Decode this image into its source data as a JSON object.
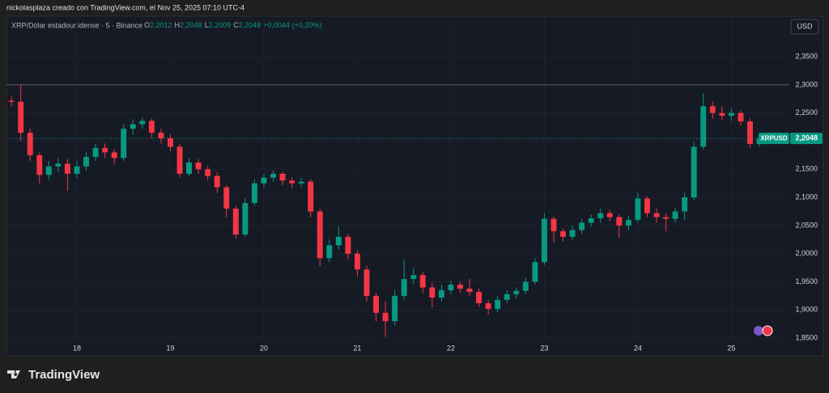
{
  "header": "nickolasplaza creado con TradingView.com, el Nov 25, 2025 07:10 UTC-4",
  "brand": "TradingView",
  "currency": "USD",
  "chart_data": {
    "type": "candlestick",
    "title": "XRP/Dólar estadounidense · 5 · Binance",
    "ohlc_legend": [
      {
        "key": "O",
        "value": "2,2012"
      },
      {
        "key": "H",
        "value": "2,2048"
      },
      {
        "key": "L",
        "value": "2,2009"
      },
      {
        "key": "C",
        "value": "2,2048"
      }
    ],
    "change": "+0,0044 (+0,20%)",
    "symbol": "XRPUSD",
    "last_price": {
      "value": 2.2048,
      "label": "2,2048"
    },
    "reference_line": 2.3,
    "up_color": "#089981",
    "down_color": "#f23645",
    "grid": true,
    "xlim": [
      17.247,
      25.62
    ],
    "ylim": [
      1.843,
      2.422
    ],
    "xticks": [
      18,
      19,
      20,
      21,
      22,
      23,
      24,
      25
    ],
    "yticks": [
      {
        "value": 1.85,
        "label": "1,8500"
      },
      {
        "value": 1.9,
        "label": "1,9000"
      },
      {
        "value": 1.95,
        "label": "1,9500"
      },
      {
        "value": 2.0,
        "label": "2,0000"
      },
      {
        "value": 2.05,
        "label": "2,0500"
      },
      {
        "value": 2.1,
        "label": "2,1000"
      },
      {
        "value": 2.15,
        "label": "2,1500"
      },
      {
        "value": 2.2,
        "label": "2,2000"
      },
      {
        "value": 2.25,
        "label": "2,2500"
      },
      {
        "value": 2.3,
        "label": "2,3000"
      },
      {
        "value": 2.35,
        "label": "2,3500"
      }
    ],
    "x": [
      17.3,
      17.4,
      17.5,
      17.6,
      17.7,
      17.8,
      17.9,
      18.0,
      18.1,
      18.2,
      18.3,
      18.4,
      18.5,
      18.6,
      18.7,
      18.8,
      18.9,
      19.0,
      19.1,
      19.2,
      19.3,
      19.4,
      19.5,
      19.6,
      19.7,
      19.8,
      19.9,
      20.0,
      20.1,
      20.2,
      20.3,
      20.4,
      20.5,
      20.6,
      20.7,
      20.8,
      20.9,
      21.0,
      21.1,
      21.2,
      21.3,
      21.4,
      21.5,
      21.6,
      21.7,
      21.8,
      21.9,
      22.0,
      22.1,
      22.2,
      22.3,
      22.4,
      22.5,
      22.6,
      22.7,
      22.8,
      22.9,
      23.0,
      23.1,
      23.2,
      23.3,
      23.4,
      23.5,
      23.6,
      23.7,
      23.8,
      23.9,
      24.0,
      24.1,
      24.2,
      24.3,
      24.4,
      24.5,
      24.6,
      24.7,
      24.8,
      24.9,
      25.0,
      25.1,
      25.2,
      25.3
    ],
    "open": [
      2.272,
      2.27,
      2.215,
      2.175,
      2.14,
      2.155,
      2.16,
      2.142,
      2.155,
      2.172,
      2.188,
      2.18,
      2.17,
      2.222,
      2.23,
      2.236,
      2.215,
      2.205,
      2.19,
      2.142,
      2.162,
      2.15,
      2.138,
      2.118,
      2.08,
      2.034,
      2.09,
      2.125,
      2.135,
      2.142,
      2.13,
      2.125,
      2.128,
      2.075,
      1.992,
      2.015,
      2.03,
      2.0,
      1.972,
      1.925,
      1.895,
      1.88,
      1.925,
      1.955,
      1.962,
      1.94,
      1.922,
      1.935,
      1.945,
      1.938,
      1.932,
      1.912,
      1.902,
      1.918,
      1.928,
      1.934,
      1.95,
      1.985,
      2.062,
      2.04,
      2.03,
      2.042,
      2.055,
      2.063,
      2.072,
      2.065,
      2.05,
      2.06,
      2.098,
      2.072,
      2.065,
      2.062,
      2.075,
      2.1,
      2.19,
      2.262,
      2.25,
      2.245,
      2.25,
      2.235,
      2.195
    ],
    "high": [
      2.28,
      2.3,
      2.222,
      2.18,
      2.165,
      2.17,
      2.168,
      2.165,
      2.18,
      2.195,
      2.196,
      2.186,
      2.23,
      2.238,
      2.242,
      2.24,
      2.222,
      2.212,
      2.195,
      2.17,
      2.168,
      2.156,
      2.145,
      2.122,
      2.085,
      2.098,
      2.132,
      2.142,
      2.148,
      2.146,
      2.136,
      2.135,
      2.132,
      2.08,
      2.025,
      2.048,
      2.035,
      2.006,
      1.978,
      1.93,
      1.915,
      1.935,
      1.99,
      1.975,
      1.968,
      1.948,
      1.945,
      1.952,
      1.95,
      1.955,
      1.938,
      1.918,
      1.925,
      1.935,
      1.94,
      1.958,
      1.992,
      2.072,
      2.066,
      2.045,
      2.05,
      2.062,
      2.07,
      2.08,
      2.078,
      2.07,
      2.068,
      2.108,
      2.102,
      2.08,
      2.072,
      2.082,
      2.108,
      2.198,
      2.285,
      2.27,
      2.262,
      2.258,
      2.255,
      2.24,
      2.2048
    ],
    "low": [
      2.262,
      2.2,
      2.165,
      2.125,
      2.132,
      2.145,
      2.112,
      2.135,
      2.148,
      2.165,
      2.17,
      2.158,
      2.165,
      2.212,
      2.222,
      2.205,
      2.196,
      2.182,
      2.135,
      2.138,
      2.142,
      2.13,
      2.108,
      2.065,
      2.027,
      2.03,
      2.085,
      2.118,
      2.128,
      2.122,
      2.116,
      2.118,
      2.065,
      1.978,
      1.985,
      2.008,
      1.99,
      1.96,
      1.915,
      1.88,
      1.852,
      1.872,
      1.918,
      1.945,
      1.93,
      1.905,
      1.915,
      1.928,
      1.93,
      1.925,
      1.905,
      1.892,
      1.896,
      1.912,
      1.92,
      1.928,
      1.945,
      1.98,
      2.02,
      2.022,
      2.025,
      2.035,
      2.048,
      2.055,
      2.058,
      2.028,
      2.042,
      2.055,
      2.065,
      2.055,
      2.04,
      2.055,
      2.06,
      2.095,
      2.185,
      2.24,
      2.238,
      2.236,
      2.228,
      2.188,
      2.19
    ],
    "close": [
      2.27,
      2.215,
      2.175,
      2.14,
      2.155,
      2.16,
      2.142,
      2.155,
      2.172,
      2.188,
      2.18,
      2.17,
      2.222,
      2.23,
      2.236,
      2.215,
      2.205,
      2.19,
      2.142,
      2.162,
      2.15,
      2.138,
      2.118,
      2.08,
      2.034,
      2.09,
      2.125,
      2.135,
      2.142,
      2.13,
      2.125,
      2.128,
      2.075,
      1.992,
      2.015,
      2.03,
      2.0,
      1.972,
      1.925,
      1.895,
      1.88,
      1.925,
      1.955,
      1.962,
      1.94,
      1.922,
      1.935,
      1.945,
      1.938,
      1.932,
      1.912,
      1.902,
      1.918,
      1.928,
      1.934,
      1.95,
      1.985,
      2.062,
      2.04,
      2.03,
      2.042,
      2.055,
      2.063,
      2.072,
      2.065,
      2.05,
      2.06,
      2.098,
      2.072,
      2.065,
      2.062,
      2.075,
      2.1,
      2.19,
      2.262,
      2.25,
      2.245,
      2.25,
      2.235,
      2.195,
      2.2048
    ]
  }
}
